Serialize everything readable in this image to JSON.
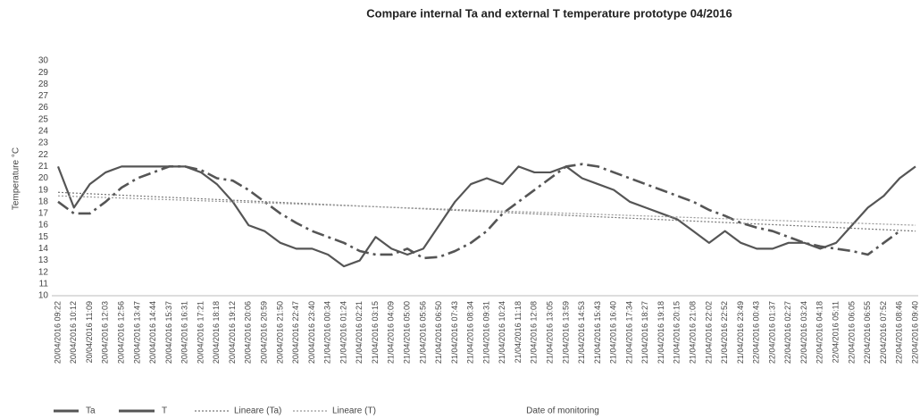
{
  "chart_data": {
    "type": "line",
    "title": "Compare internal Ta and external T temperature prototype 04/2016",
    "ylabel": "Temperature °C",
    "xlabel": "Date of monitoring",
    "categories": [
      "20/04/2016 09:22",
      "20/04/2016 10:12",
      "20/04/2016 11:09",
      "20/04/2016 12:03",
      "20/04/2016 12:56",
      "20/04/2016 13:47",
      "20/04/2016 14:44",
      "20/04/2016 15:37",
      "20/04/2016 16:31",
      "20/04/2016 17:21",
      "20/04/2016 18:18",
      "20/04/2016 19:12",
      "20/04/2016 20:06",
      "20/04/2016 20:59",
      "20/04/2016 21:50",
      "20/04/2016 22:47",
      "20/04/2016 23:40",
      "21/04/2016 00:34",
      "21/04/2016 01:24",
      "21/04/2016 02:21",
      "21/04/2016 03:15",
      "21/04/2016 04:09",
      "21/04/2016 05:00",
      "21/04/2016 05:56",
      "21/04/2016 06:50",
      "21/04/2016 07:43",
      "21/04/2016 08:34",
      "21/04/2016 09:31",
      "21/04/2016 10:24",
      "21/04/2016 11:18",
      "21/04/2016 12:08",
      "21/04/2016 13:05",
      "21/04/2016 13:59",
      "21/04/2016 14:53",
      "21/04/2016 15:43",
      "21/04/2016 16:40",
      "21/04/2016 17:34",
      "21/04/2016 18:27",
      "21/04/2016 19:18",
      "21/04/2016 20:15",
      "21/04/2016 21:08",
      "21/04/2016 22:02",
      "21/04/2016 22:52",
      "21/04/2016 23:49",
      "22/04/2016 00:43",
      "22/04/2016 01:37",
      "22/04/2016 02:27",
      "22/04/2016 03:24",
      "22/04/2016 04:18",
      "22/04/2016 05:11",
      "22/04/2016 06:05",
      "22/04/2016 06:55",
      "22/04/2016 07:52",
      "22/04/2016 08:46",
      "22/04/2016 09:40"
    ],
    "series": [
      {
        "name": "Ta",
        "color": "#555555",
        "style": "solid",
        "values": [
          21,
          17.5,
          19.5,
          20.5,
          21,
          21,
          21,
          21,
          21,
          20.5,
          19.5,
          18,
          16,
          15.5,
          14.5,
          14,
          14,
          13.5,
          12.5,
          13,
          15,
          14,
          13.5,
          14,
          16,
          18,
          19.5,
          20,
          19.5,
          21,
          20.5,
          20.5,
          21,
          20,
          19.5,
          19,
          18,
          17.5,
          17,
          16.5,
          15.5,
          14.5,
          15.5,
          14.5,
          14,
          14,
          14.5,
          14.5,
          14,
          14.5,
          16,
          17.5,
          18.5,
          20,
          21
        ]
      },
      {
        "name": "T",
        "color": "#555555",
        "style": "dashdot",
        "values": [
          18,
          17,
          17,
          18,
          19.2,
          20,
          20.5,
          21,
          21,
          20.7,
          20,
          19.8,
          19,
          18,
          17,
          16.2,
          15.5,
          15,
          14.5,
          13.8,
          13.5,
          13.5,
          14,
          13.2,
          13.3,
          13.8,
          14.5,
          15.5,
          17,
          18,
          19,
          20,
          21,
          21.2,
          21,
          20.5,
          20,
          19.5,
          19,
          18.5,
          18,
          17.3,
          16.8,
          16.2,
          15.8,
          15.5,
          15,
          14.5,
          14.2,
          14,
          13.8,
          13.5,
          14.5,
          15.5,
          null
        ]
      }
    ],
    "trendlines": [
      {
        "name": "Lineare (Ta)",
        "color": "#777777",
        "start": 18.8,
        "end": 15.5
      },
      {
        "name": "Lineare (T)",
        "color": "#999999",
        "start": 18.5,
        "end": 16
      }
    ],
    "ylim": [
      10,
      30
    ],
    "yticks": [
      10,
      11,
      12,
      13,
      14,
      15,
      16,
      17,
      18,
      19,
      20,
      21,
      22,
      23,
      24,
      25,
      26,
      27,
      28,
      29,
      30
    ],
    "grid": false,
    "legend": "bottom"
  }
}
